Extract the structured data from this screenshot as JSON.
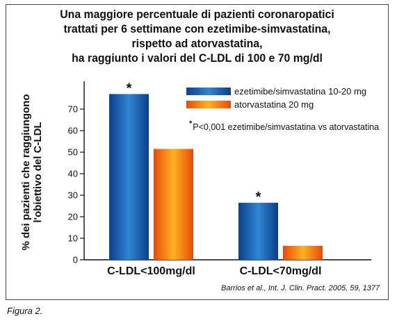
{
  "chart_data": {
    "type": "bar",
    "title_lines": [
      "Una maggiore percentuale di pazienti coronaropatici",
      "trattati per 6 settimane con ezetimibe-simvastatina,",
      "rispetto ad atorvastatina,",
      "ha raggiunto i valori del C-LDL di 100 e 70 mg/dl"
    ],
    "ylabel_lines": [
      "% dei pazienti che raggiungono",
      "l'obiettivo del C-LDL"
    ],
    "xlabel": "",
    "categories": [
      "C-LDL<100mg/dl",
      "C-LDL<70mg/dl"
    ],
    "series": [
      {
        "name": "ezetimibe/simvastatina 10-20 mg",
        "values": [
          77,
          26.5
        ],
        "significance": [
          "*",
          "*"
        ],
        "colors": [
          "#0a3f8c",
          "#2f86d3"
        ]
      },
      {
        "name": "atorvastatina 20 mg",
        "values": [
          51.5,
          6.5
        ],
        "significance": [
          "",
          ""
        ],
        "colors": [
          "#e84a0c",
          "#ffb21e"
        ]
      }
    ],
    "yticks": [
      0,
      10,
      20,
      30,
      40,
      50,
      60,
      70
    ],
    "ylim": [
      0,
      81
    ],
    "grid": false,
    "legend_position": "top-right",
    "annotation": "P<0,001 ezetimibe/simvastatina vs atorvastatina",
    "annotation_marker": "*",
    "source": "Barrios et al., Int. J. Clin. Pract. 2005, 59, 1377"
  },
  "caption": "Figura 2."
}
